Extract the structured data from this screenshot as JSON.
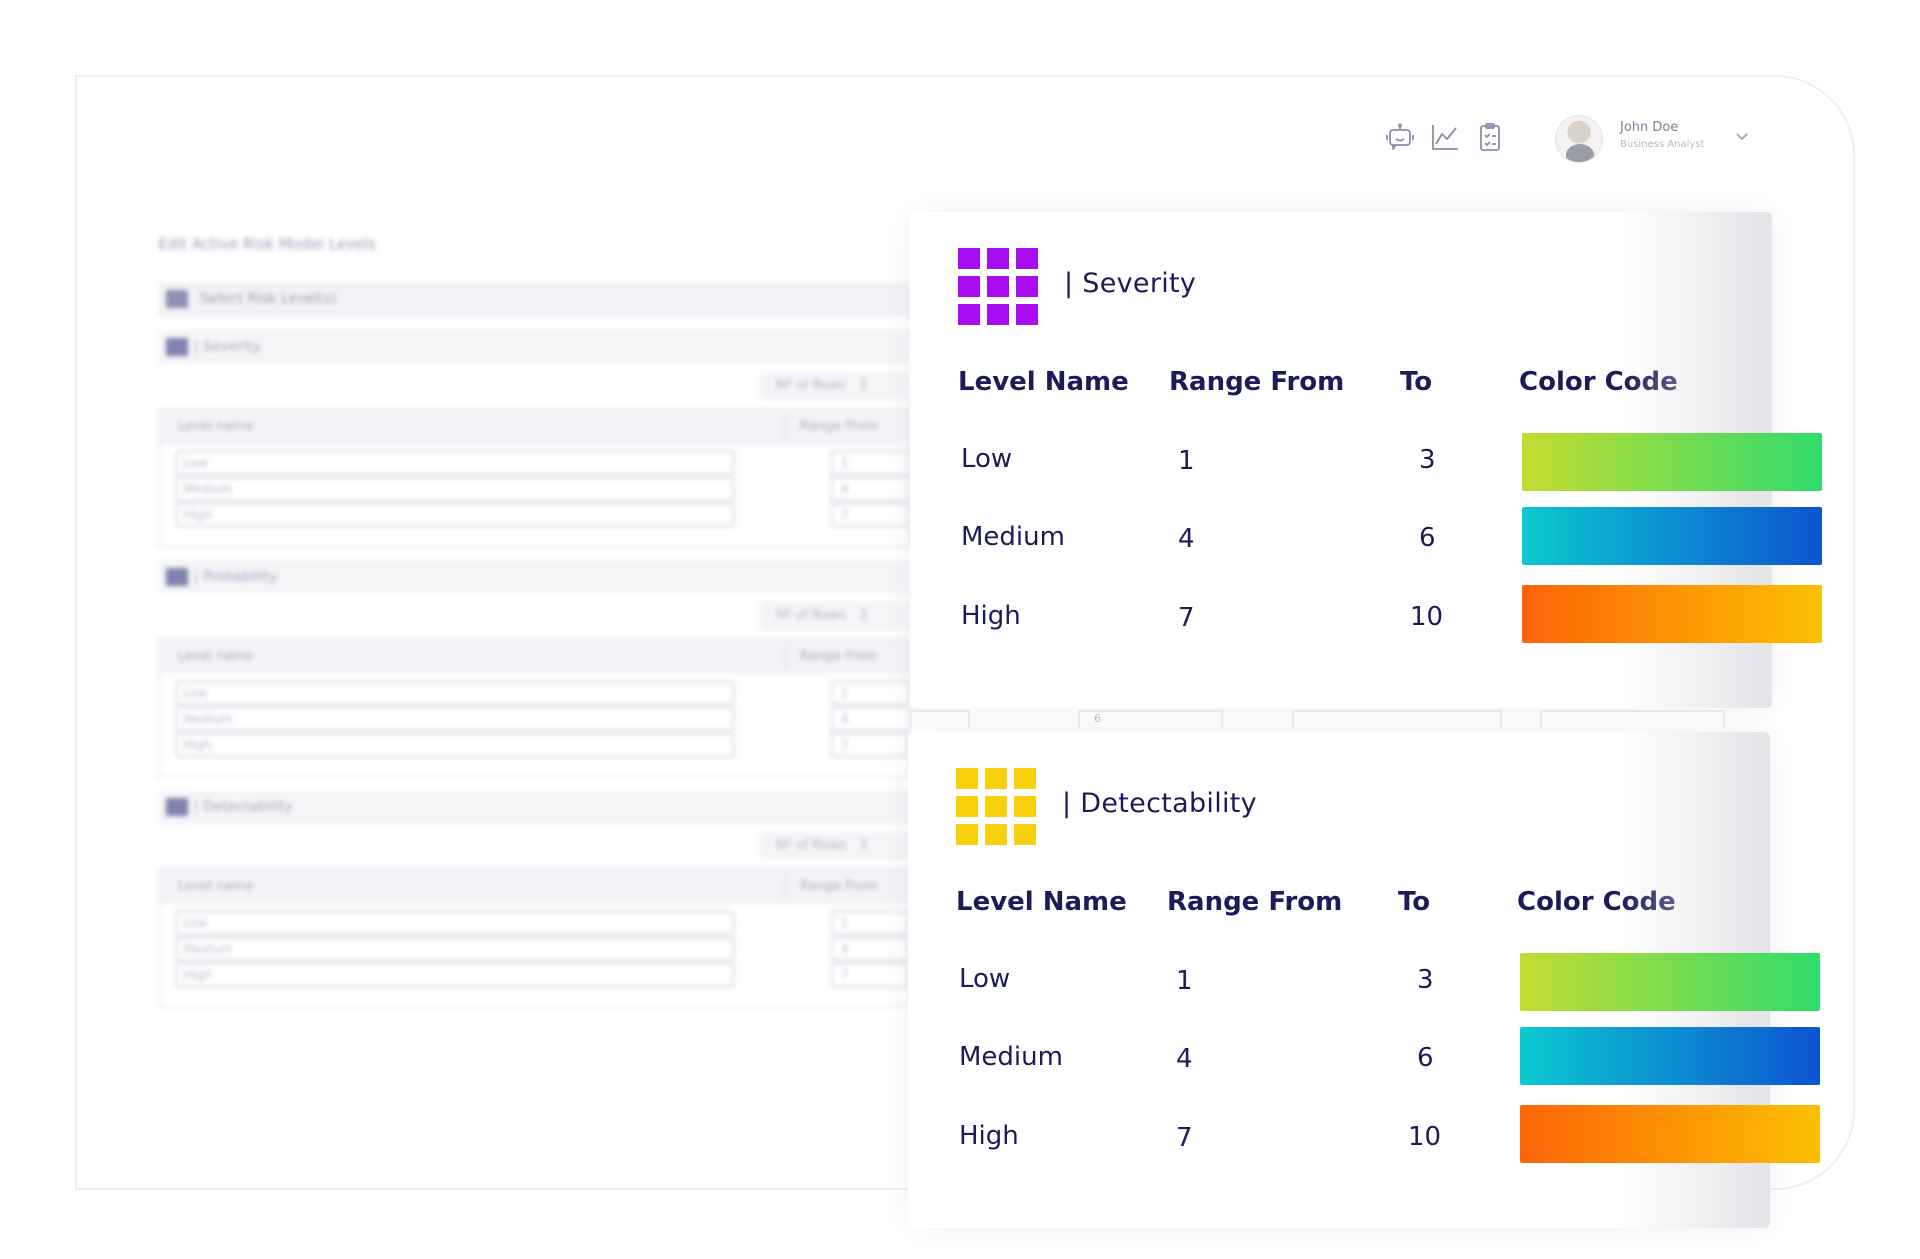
{
  "header": {
    "icons": [
      "robot-icon",
      "trend-chart-icon",
      "clipboard-icon"
    ],
    "user": {
      "name": "John Doe",
      "role": "Business Analyst"
    }
  },
  "background_form": {
    "title": "Edit Active Risk Model Levels",
    "select_label": "Select Risk Level(s)",
    "sections": [
      {
        "name": "| Severity",
        "rows_label": "Nº of Rows",
        "rows_value": "3",
        "col_level": "Level name",
        "col_range": "Range From",
        "levels": [
          "Low",
          "Medium",
          "High"
        ],
        "from": [
          "1",
          "4",
          "7"
        ]
      },
      {
        "name": "| Probability",
        "rows_label": "Nº of Rows",
        "rows_value": "3",
        "col_level": "Level name",
        "col_range": "Range From",
        "levels": [
          "Low",
          "Medium",
          "High"
        ],
        "from": [
          "1",
          "4",
          "7"
        ]
      },
      {
        "name": "| Detectability",
        "rows_label": "Nº of Rows",
        "rows_value": "3",
        "col_level": "Level name",
        "col_range": "Range From",
        "levels": [
          "Low",
          "Medium",
          "High"
        ],
        "from": [
          "1",
          "4",
          "7"
        ]
      }
    ],
    "peek_value": "6"
  },
  "cards": [
    {
      "title": "| Severity",
      "icon_color": "#a80cf0",
      "columns": [
        "Level Name",
        "Range From",
        "To",
        "Color Code"
      ],
      "rows": [
        {
          "level": "Low",
          "from": "1",
          "to": "3",
          "gradient": [
            "#c4dc30",
            "#30dc6c"
          ]
        },
        {
          "level": "Medium",
          "from": "4",
          "to": "6",
          "gradient": [
            "#0cc8d0",
            "#0c54d0"
          ]
        },
        {
          "level": "High",
          "from": "7",
          "to": "10",
          "gradient": [
            "#fc6408",
            "#fcc000"
          ]
        }
      ]
    },
    {
      "title": "| Detectability",
      "icon_color": "#f8d00c",
      "columns": [
        "Level Name",
        "Range From",
        "To",
        "Color Code"
      ],
      "rows": [
        {
          "level": "Low",
          "from": "1",
          "to": "3",
          "gradient": [
            "#c4dc30",
            "#30dc6c"
          ]
        },
        {
          "level": "Medium",
          "from": "4",
          "to": "6",
          "gradient": [
            "#0cc8d0",
            "#0c54d0"
          ]
        },
        {
          "level": "High",
          "from": "7",
          "to": "10",
          "gradient": [
            "#fc6408",
            "#fcc000"
          ]
        }
      ]
    }
  ]
}
